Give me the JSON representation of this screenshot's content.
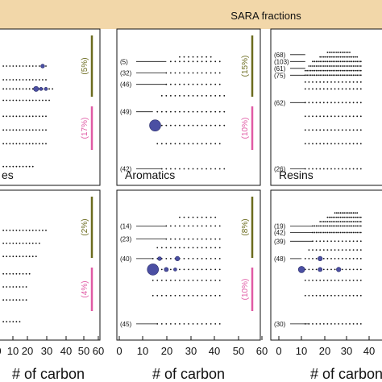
{
  "header": {
    "title": "SARA fractions",
    "band_color": "#f2d7a9"
  },
  "colors": {
    "bubble": "#4b4fa3",
    "dot": "#111111",
    "olive": "#6b6b1e",
    "pink": "#e05aa5"
  },
  "panels": [
    {
      "id": "top-left",
      "label": "es",
      "olive_pct": "(5%)",
      "pink_pct": "(17%)",
      "tick_labels": [],
      "annotations": [],
      "bubbles": [
        {
          "x": 28,
          "y": 12,
          "r": 1.2
        },
        {
          "x": 24,
          "y": 22,
          "r": 1.6
        },
        {
          "x": 27,
          "y": 22,
          "r": 1.0
        },
        {
          "x": 30,
          "y": 22,
          "r": 1.0
        }
      ],
      "rows": [
        {
          "y": 12,
          "from": 4,
          "to": 30,
          "step": 2
        },
        {
          "y": 18,
          "from": 4,
          "to": 30,
          "step": 2
        },
        {
          "y": 22,
          "from": 4,
          "to": 34,
          "step": 2
        },
        {
          "y": 27,
          "from": 4,
          "to": 32,
          "step": 2
        },
        {
          "y": 34,
          "from": 4,
          "to": 30,
          "step": 2
        },
        {
          "y": 40,
          "from": 4,
          "to": 30,
          "step": 2
        },
        {
          "y": 46,
          "from": 4,
          "to": 30,
          "step": 2
        },
        {
          "y": 56,
          "from": 4,
          "to": 22,
          "step": 2
        }
      ]
    },
    {
      "id": "top-middle",
      "label": "Aromatics",
      "olive_pct": "(15%)",
      "pink_pct": "(10%)",
      "tick_labels": [],
      "annotations": [
        {
          "text": "(5)",
          "y": 10,
          "x_end": 20
        },
        {
          "text": "(32)",
          "y": 15,
          "x_end": 20
        },
        {
          "text": "(46)",
          "y": 20,
          "x_end": 20
        },
        {
          "text": "(49)",
          "y": 32,
          "x_end": 14
        },
        {
          "text": "(42)",
          "y": 57,
          "x_end": 18
        }
      ],
      "bubbles": [
        {
          "x": 15,
          "y": 38,
          "r": 3.5
        }
      ],
      "rows": [
        {
          "y": 8,
          "from": 26,
          "to": 40,
          "step": 2
        },
        {
          "y": 10,
          "from": 22,
          "to": 44,
          "step": 2
        },
        {
          "y": 15,
          "from": 20,
          "to": 44,
          "step": 2
        },
        {
          "y": 20,
          "from": 20,
          "to": 44,
          "step": 2
        },
        {
          "y": 25,
          "from": 18,
          "to": 46,
          "step": 2
        },
        {
          "y": 32,
          "from": 16,
          "to": 46,
          "step": 2
        },
        {
          "y": 38,
          "from": 18,
          "to": 46,
          "step": 2
        },
        {
          "y": 46,
          "from": 16,
          "to": 44,
          "step": 2
        },
        {
          "y": 57,
          "from": 18,
          "to": 46,
          "step": 2
        }
      ]
    },
    {
      "id": "top-right",
      "label": "Resins",
      "olive_pct": "",
      "pink_pct": "",
      "tick_labels": [],
      "annotations": [
        {
          "text": "(68)",
          "y": 7,
          "x_end": 16
        },
        {
          "text": "(103)",
          "y": 10,
          "x_end": 16
        },
        {
          "text": "(61)",
          "y": 13,
          "x_end": 16
        },
        {
          "text": "(75)",
          "y": 16,
          "x_end": 16
        },
        {
          "text": "(62)",
          "y": 28,
          "x_end": 16
        },
        {
          "text": "(26)",
          "y": 57,
          "x_end": 16
        }
      ],
      "bubbles": [],
      "rows": [
        {
          "y": 6,
          "from": 28,
          "to": 40,
          "step": 1
        },
        {
          "y": 8,
          "from": 24,
          "to": 44,
          "step": 1
        },
        {
          "y": 10,
          "from": 20,
          "to": 46,
          "step": 1
        },
        {
          "y": 12,
          "from": 18,
          "to": 46,
          "step": 1
        },
        {
          "y": 14,
          "from": 16,
          "to": 46,
          "step": 1
        },
        {
          "y": 16,
          "from": 16,
          "to": 46,
          "step": 1
        },
        {
          "y": 19,
          "from": 16,
          "to": 46,
          "step": 2
        },
        {
          "y": 22,
          "from": 16,
          "to": 46,
          "step": 2
        },
        {
          "y": 28,
          "from": 16,
          "to": 46,
          "step": 2
        },
        {
          "y": 34,
          "from": 16,
          "to": 46,
          "step": 2
        },
        {
          "y": 40,
          "from": 16,
          "to": 46,
          "step": 2
        },
        {
          "y": 46,
          "from": 16,
          "to": 46,
          "step": 2
        },
        {
          "y": 57,
          "from": 16,
          "to": 46,
          "step": 2
        }
      ]
    },
    {
      "id": "bottom-left",
      "label": "",
      "olive_pct": "(2%)",
      "pink_pct": "(4%)",
      "tick_labels": [
        "0",
        "10",
        "20",
        "30",
        "40",
        "50",
        "60"
      ],
      "xlabel": "# of carbon",
      "annotations": [],
      "bubbles": [],
      "rows": [
        {
          "y": 14,
          "from": 4,
          "to": 30,
          "step": 2
        },
        {
          "y": 20,
          "from": 4,
          "to": 26,
          "step": 2
        },
        {
          "y": 26,
          "from": 4,
          "to": 24,
          "step": 2
        },
        {
          "y": 34,
          "from": 4,
          "to": 20,
          "step": 2
        },
        {
          "y": 40,
          "from": 4,
          "to": 18,
          "step": 2
        },
        {
          "y": 46,
          "from": 4,
          "to": 18,
          "step": 2
        },
        {
          "y": 56,
          "from": 4,
          "to": 14,
          "step": 2
        }
      ]
    },
    {
      "id": "bottom-middle",
      "label": "",
      "olive_pct": "(8%)",
      "pink_pct": "(10%)",
      "tick_labels": [
        "0",
        "10",
        "20",
        "30",
        "40",
        "50",
        "60"
      ],
      "xlabel": "# of carbon",
      "annotations": [
        {
          "text": "(14)",
          "y": 12,
          "x_end": 20
        },
        {
          "text": "(23)",
          "y": 18,
          "x_end": 20
        },
        {
          "text": "(40)",
          "y": 27,
          "x_end": 14
        },
        {
          "text": "(45)",
          "y": 57,
          "x_end": 16
        }
      ],
      "bubbles": [
        {
          "x": 14,
          "y": 32,
          "r": 3.5
        },
        {
          "x": 17,
          "y": 27,
          "r": 1.2
        },
        {
          "x": 25,
          "y": 27,
          "r": 1.4
        },
        {
          "x": 20,
          "y": 32,
          "r": 1.3
        },
        {
          "x": 24,
          "y": 32,
          "r": 1.0
        }
      ],
      "rows": [
        {
          "y": 8,
          "from": 26,
          "to": 42,
          "step": 2
        },
        {
          "y": 12,
          "from": 20,
          "to": 44,
          "step": 2
        },
        {
          "y": 18,
          "from": 20,
          "to": 44,
          "step": 2
        },
        {
          "y": 22,
          "from": 16,
          "to": 44,
          "step": 2
        },
        {
          "y": 27,
          "from": 14,
          "to": 44,
          "step": 2
        },
        {
          "y": 32,
          "from": 16,
          "to": 44,
          "step": 2
        },
        {
          "y": 37,
          "from": 14,
          "to": 44,
          "step": 2
        },
        {
          "y": 44,
          "from": 14,
          "to": 44,
          "step": 2
        },
        {
          "y": 57,
          "from": 16,
          "to": 44,
          "step": 2
        }
      ]
    },
    {
      "id": "bottom-right",
      "label": "",
      "olive_pct": "",
      "pink_pct": "",
      "tick_labels": [
        "0",
        "10",
        "20",
        "30",
        "40"
      ],
      "xlabel": "# of carbon",
      "annotations": [
        {
          "text": "(19)",
          "y": 12,
          "x_end": 20
        },
        {
          "text": "(42)",
          "y": 15,
          "x_end": 20
        },
        {
          "text": "(39)",
          "y": 19,
          "x_end": 20
        },
        {
          "text": "(48)",
          "y": 27,
          "x_end": 14
        },
        {
          "text": "(30)",
          "y": 57,
          "x_end": 18
        }
      ],
      "bubbles": [
        {
          "x": 14,
          "y": 32,
          "r": 2.0
        },
        {
          "x": 24,
          "y": 27,
          "r": 1.4
        },
        {
          "x": 24,
          "y": 32,
          "r": 1.3
        },
        {
          "x": 34,
          "y": 32,
          "r": 1.4
        }
      ],
      "rows": [
        {
          "y": 6,
          "from": 32,
          "to": 44,
          "step": 1
        },
        {
          "y": 8,
          "from": 28,
          "to": 46,
          "step": 1
        },
        {
          "y": 10,
          "from": 24,
          "to": 46,
          "step": 1
        },
        {
          "y": 12,
          "from": 20,
          "to": 46,
          "step": 1
        },
        {
          "y": 15,
          "from": 20,
          "to": 46,
          "step": 1
        },
        {
          "y": 19,
          "from": 20,
          "to": 46,
          "step": 2
        },
        {
          "y": 23,
          "from": 18,
          "to": 46,
          "step": 2
        },
        {
          "y": 27,
          "from": 16,
          "to": 46,
          "step": 2
        },
        {
          "y": 32,
          "from": 16,
          "to": 46,
          "step": 2
        },
        {
          "y": 37,
          "from": 16,
          "to": 46,
          "step": 2
        },
        {
          "y": 44,
          "from": 16,
          "to": 46,
          "step": 2
        },
        {
          "y": 57,
          "from": 16,
          "to": 46,
          "step": 2
        }
      ]
    }
  ],
  "chart_data": {
    "type": "scatter",
    "title": "SARA fractions",
    "xlabel": "# of carbon",
    "xlim": [
      0,
      60
    ],
    "xticks": [
      "0",
      "10",
      "20",
      "30",
      "40",
      "50",
      "60"
    ],
    "panels": [
      "es",
      "Aromatics",
      "Resins",
      "",
      "",
      ""
    ],
    "grid": false
  }
}
